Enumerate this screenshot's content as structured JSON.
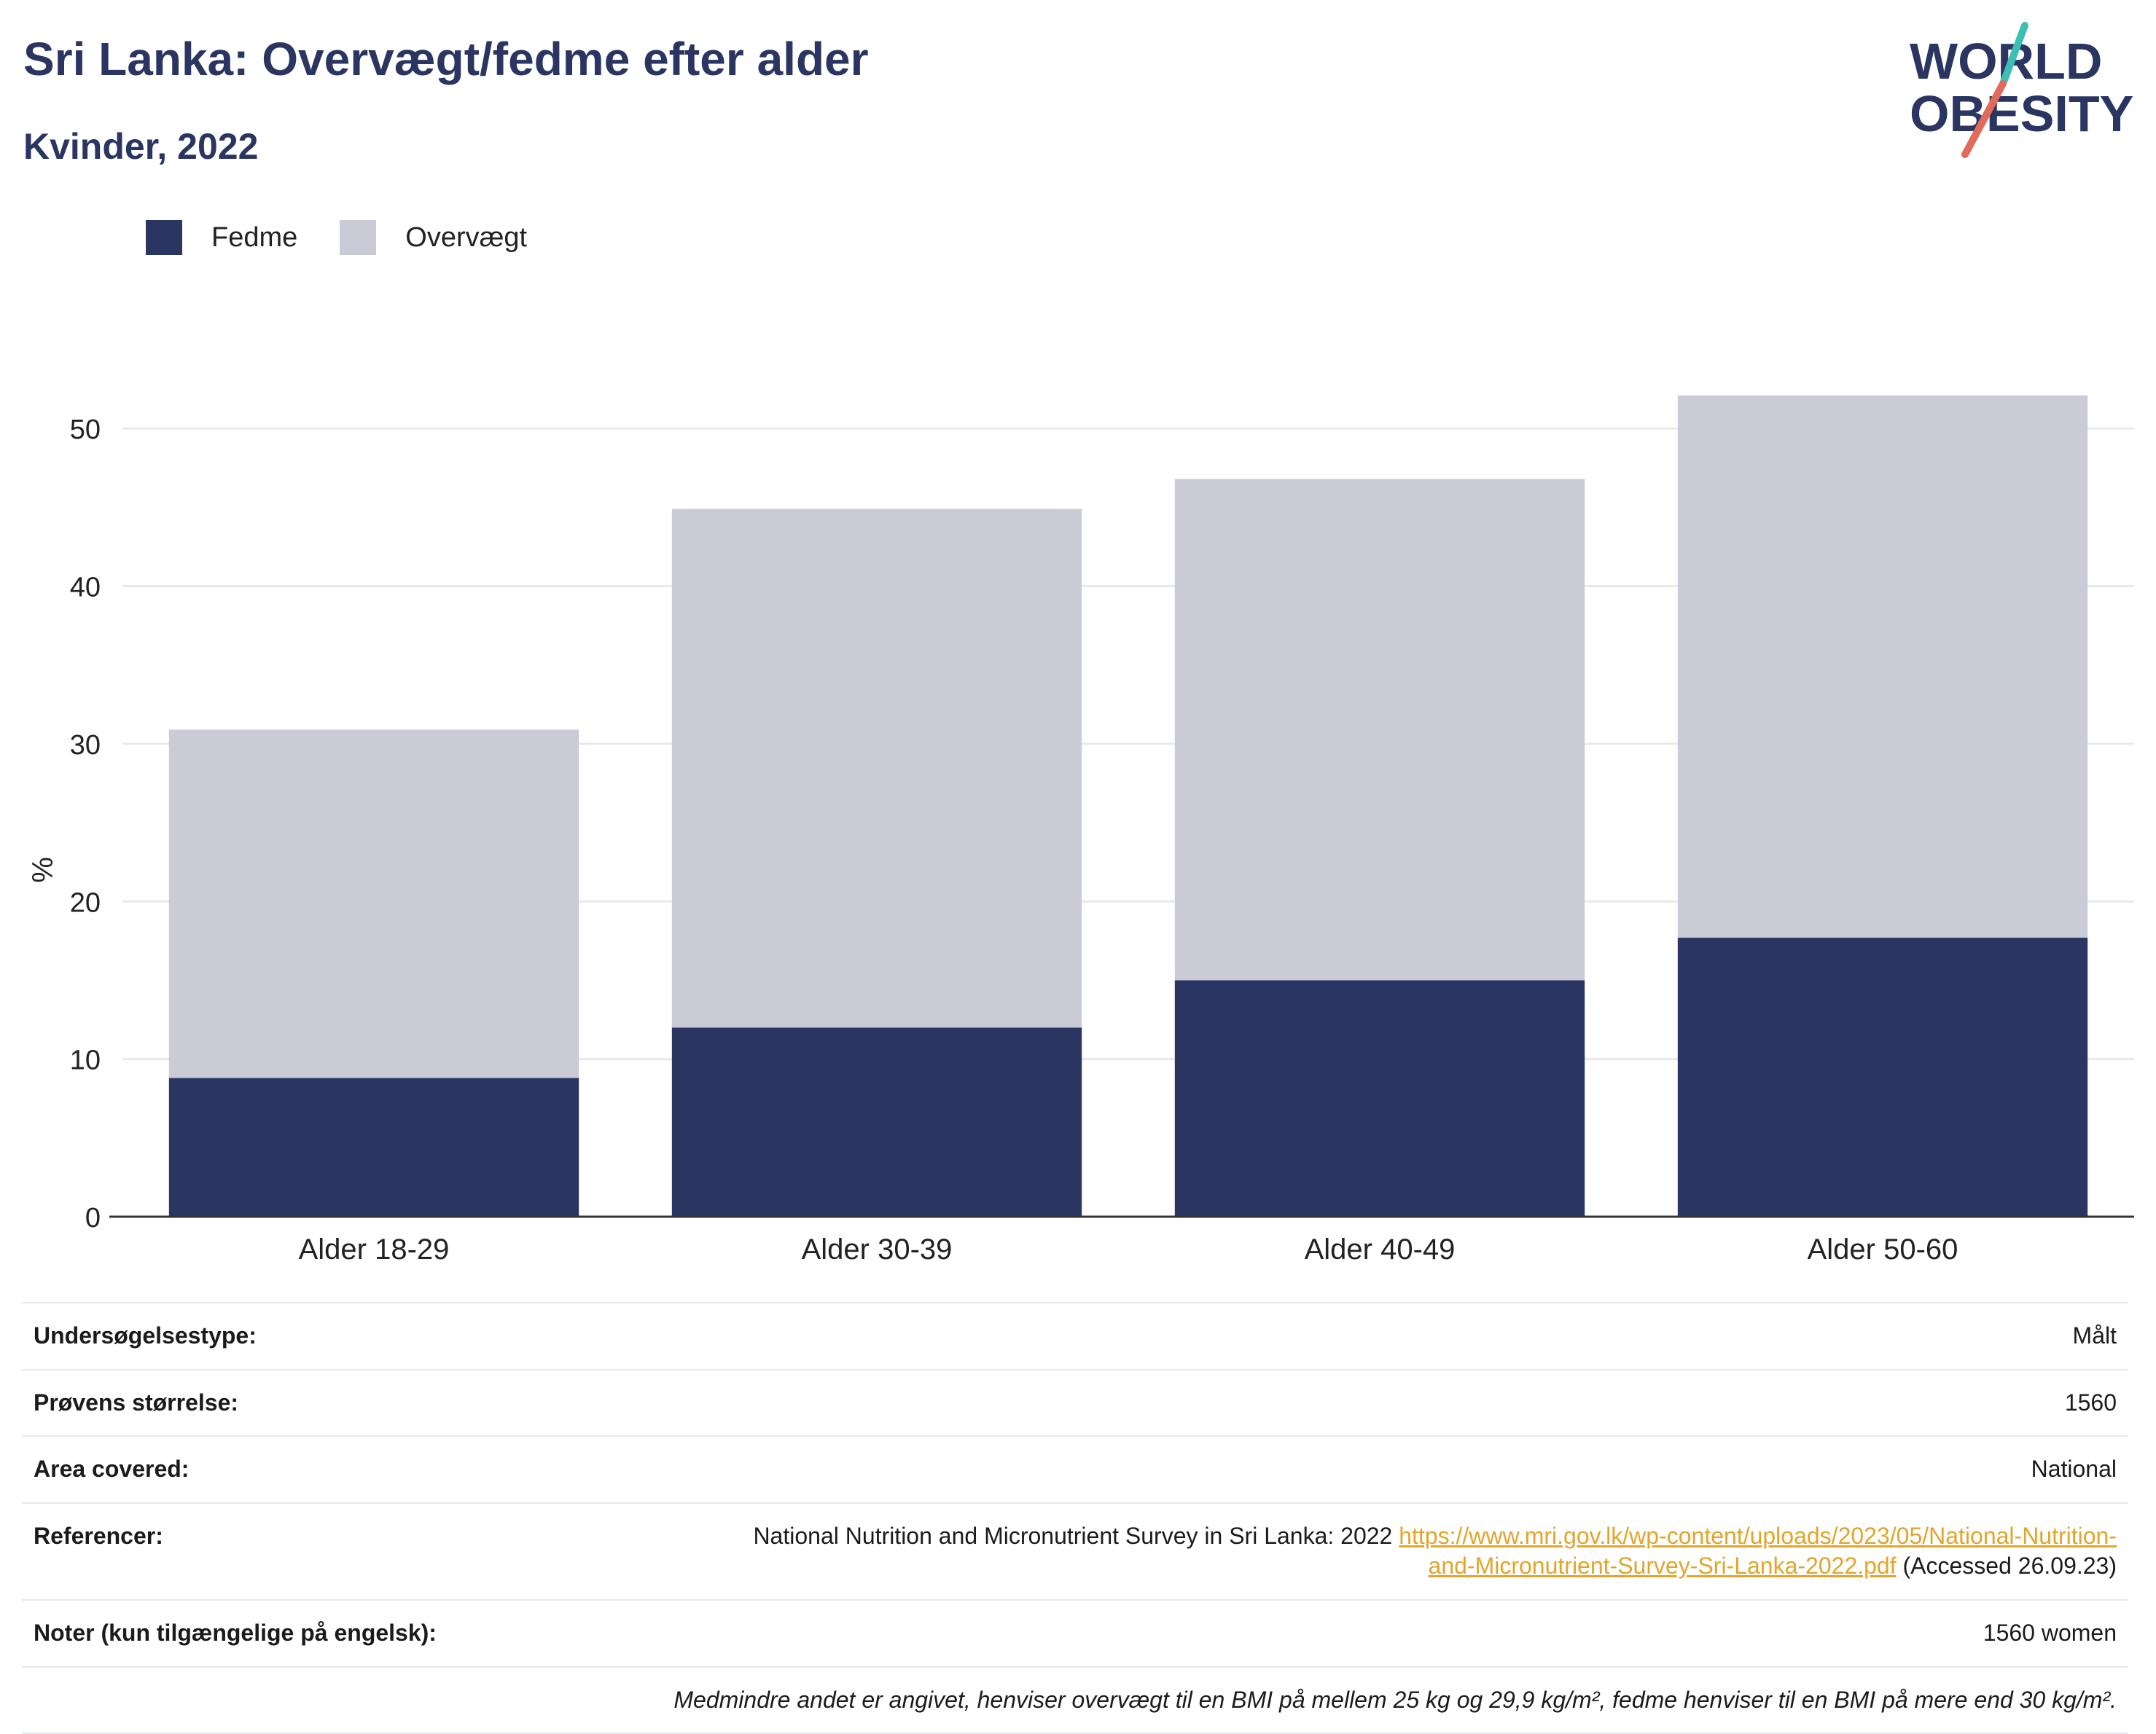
{
  "header": {
    "title": "Sri Lanka: Overvægt/fedme efter alder",
    "subtitle": "Kvinder, 2022"
  },
  "logo": {
    "line1": "WORLD",
    "line2": "OBESITY",
    "accent_colors": [
      "#3bbfb4",
      "#e26a5a"
    ],
    "text_color": "#2b3562"
  },
  "legend": [
    {
      "label": "Fedme",
      "color": "#2b3562"
    },
    {
      "label": "Overvægt",
      "color": "#cacbd7"
    }
  ],
  "chart_data": {
    "type": "bar",
    "stacked": true,
    "categories": [
      "Alder 18-29",
      "Alder 30-39",
      "Alder 40-49",
      "Alder 50-60"
    ],
    "series": [
      {
        "name": "Fedme",
        "color": "#2b3562",
        "values": [
          8.8,
          12.0,
          15.0,
          17.7
        ]
      },
      {
        "name": "Overvægt",
        "color": "#cacbd7",
        "values": [
          22.1,
          32.9,
          31.8,
          34.4
        ]
      }
    ],
    "ylabel": "%",
    "ylim": [
      0,
      55
    ],
    "yticks": [
      0,
      10,
      20,
      30,
      40,
      50
    ],
    "grid": true,
    "legend_position": "top-left"
  },
  "info": {
    "survey_type": {
      "label": "Undersøgelsestype:",
      "value": "Målt"
    },
    "sample_size": {
      "label": "Prøvens størrelse:",
      "value": "1560"
    },
    "area": {
      "label": "Area covered:",
      "value": "National"
    },
    "references": {
      "label": "Referencer:",
      "text": "National Nutrition and Micronutrient Survey in Sri Lanka: 2022 ",
      "link": "https://www.mri.gov.lk/wp-content/uploads/2023/05/National-Nutrition-and-Micronutrient-Survey-Sri-Lanka-2022.pdf",
      "accessed": " (Accessed 26.09.23)"
    },
    "notes": {
      "label": "Noter (kun tilgængelige på engelsk):",
      "value": "1560 women"
    },
    "footnote": "Medmindre andet er angivet, henviser overvægt til en BMI på mellem 25 kg og 29,9 kg/m², fedme henviser til en BMI på mere end 30 kg/m²."
  }
}
